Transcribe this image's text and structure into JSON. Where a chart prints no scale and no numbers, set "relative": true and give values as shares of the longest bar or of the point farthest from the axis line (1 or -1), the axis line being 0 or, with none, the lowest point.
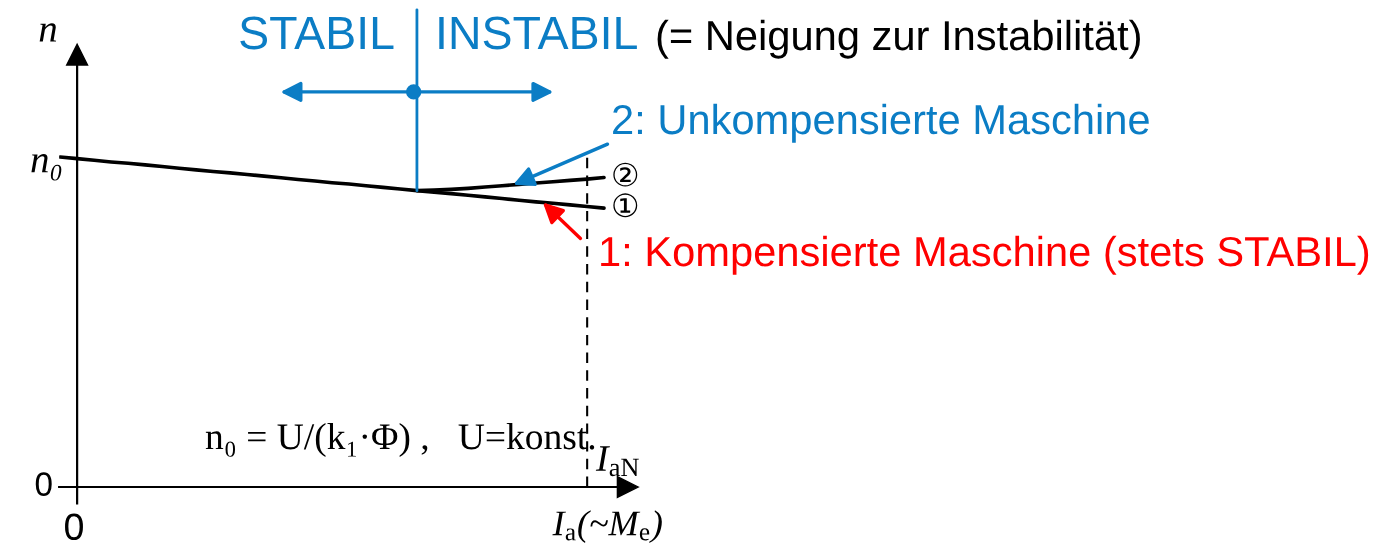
{
  "chart_data": {
    "type": "line",
    "relative": true,
    "xlabel": "I$_{a}$(~M$_{e}$)",
    "ylabel": "n",
    "line_style": "solid",
    "categories": [
      null,
      null,
      null,
      null,
      null,
      null,
      null,
      null,
      null,
      null,
      null,
      null,
      null,
      null,
      null,
      null,
      null,
      null,
      null,
      null,
      null,
      null,
      null,
      null,
      null,
      null,
      null,
      null,
      null,
      null,
      null,
      null,
      null
    ],
    "series": [
      {
        "name": "①",
        "color": "#000000",
        "values": [
          1.0,
          0.995,
          0.99,
          0.985,
          0.981,
          0.976,
          0.971,
          0.966,
          0.961,
          0.956,
          0.952,
          0.947,
          0.942,
          0.937,
          0.932,
          0.927,
          0.922,
          0.918,
          0.913,
          0.908,
          0.903,
          0.898,
          0.893,
          0.889,
          0.884,
          0.879,
          0.874,
          0.869,
          0.864,
          0.86,
          0.855,
          0.85,
          0.845
        ]
      },
      {
        "name": "②",
        "color": "#000000",
        "values": [
          null,
          null,
          null,
          null,
          null,
          null,
          null,
          null,
          null,
          null,
          null,
          null,
          null,
          null,
          null,
          null,
          null,
          null,
          null,
          null,
          null,
          0.898,
          0.9,
          0.902,
          0.905,
          0.909,
          0.913,
          0.917,
          0.921,
          0.925,
          0.929,
          0.933,
          0.938
        ]
      }
    ],
    "annotations": [
      "STABIL",
      "INSTABIL",
      "(= Neigung zur Instabilität)",
      "2: Unkompensierte Maschine",
      "1: Kompensierte Maschine (stets STABIL)",
      "n₀ = U/(k₁·Φ) ,   U=konst.",
      "n₀",
      "0",
      "0",
      "I$_{aN}$"
    ]
  }
}
